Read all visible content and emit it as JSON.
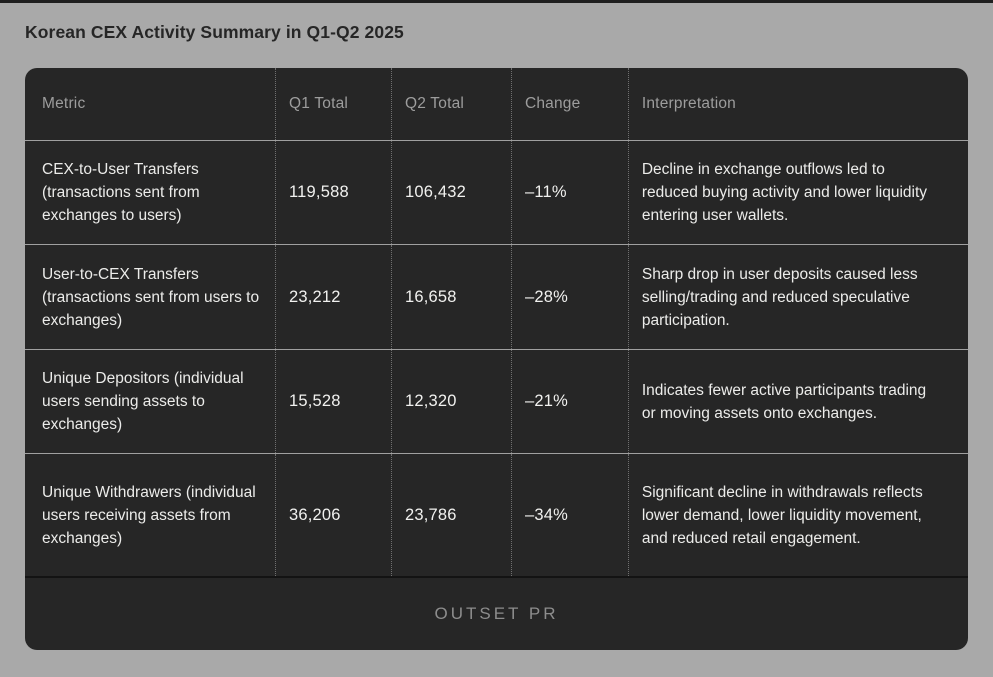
{
  "page": {
    "title": "Korean CEX Activity Summary in Q1-Q2 2025"
  },
  "chart_data": {
    "type": "table",
    "title": "Korean CEX Activity Summary in Q1-Q2 2025",
    "columns": [
      "Metric",
      "Q1 Total",
      "Q2 Total",
      "Change",
      "Interpretation"
    ],
    "rows": [
      {
        "metric": "CEX-to-User Transfers",
        "metric_note": "(transactions sent from exchanges to users)",
        "q1_label": "119,588",
        "q2_label": "106,432",
        "q1_value": 119588,
        "q2_value": 106432,
        "change_label": "–11%",
        "change_pct": -11,
        "interpretation": "Decline in exchange outflows led to reduced buying activity and lower liquidity entering user wallets."
      },
      {
        "metric": "User-to-CEX Transfers",
        "metric_note": "(transactions sent from users to exchanges)",
        "q1_label": "23,212",
        "q2_label": "16,658",
        "q1_value": 23212,
        "q2_value": 16658,
        "change_label": "–28%",
        "change_pct": -28,
        "interpretation": "Sharp drop in user deposits caused less selling/trading and reduced speculative participation."
      },
      {
        "metric": "Unique Depositors",
        "metric_note": "(individual users sending assets to exchanges)",
        "q1_label": "15,528",
        "q2_label": "12,320",
        "q1_value": 15528,
        "q2_value": 12320,
        "change_label": "–21%",
        "change_pct": -21,
        "interpretation": "Indicates fewer active participants trading or moving assets onto exchanges."
      },
      {
        "metric": "Unique Withdrawers",
        "metric_note": "(individual users receiving assets from exchanges)",
        "q1_label": "36,206",
        "q2_label": "23,786",
        "q1_value": 36206,
        "q2_value": 23786,
        "change_label": "–34%",
        "change_pct": -34,
        "interpretation": "Significant decline in withdrawals reflects lower demand, lower liquidity movement, and reduced retail engagement."
      }
    ]
  },
  "footer": {
    "brand": "OUTSET PR"
  },
  "colors": {
    "page_background": "#a9a9a9",
    "card_background": "#262626",
    "body_text": "#ececea",
    "muted_header_text": "#9d9d9d",
    "row_divider": "#a0a0a0",
    "column_divider_dotted": "#707070",
    "footer_divider": "#131313",
    "brand_text": "#8d8d8d",
    "title_text": "#262626"
  }
}
